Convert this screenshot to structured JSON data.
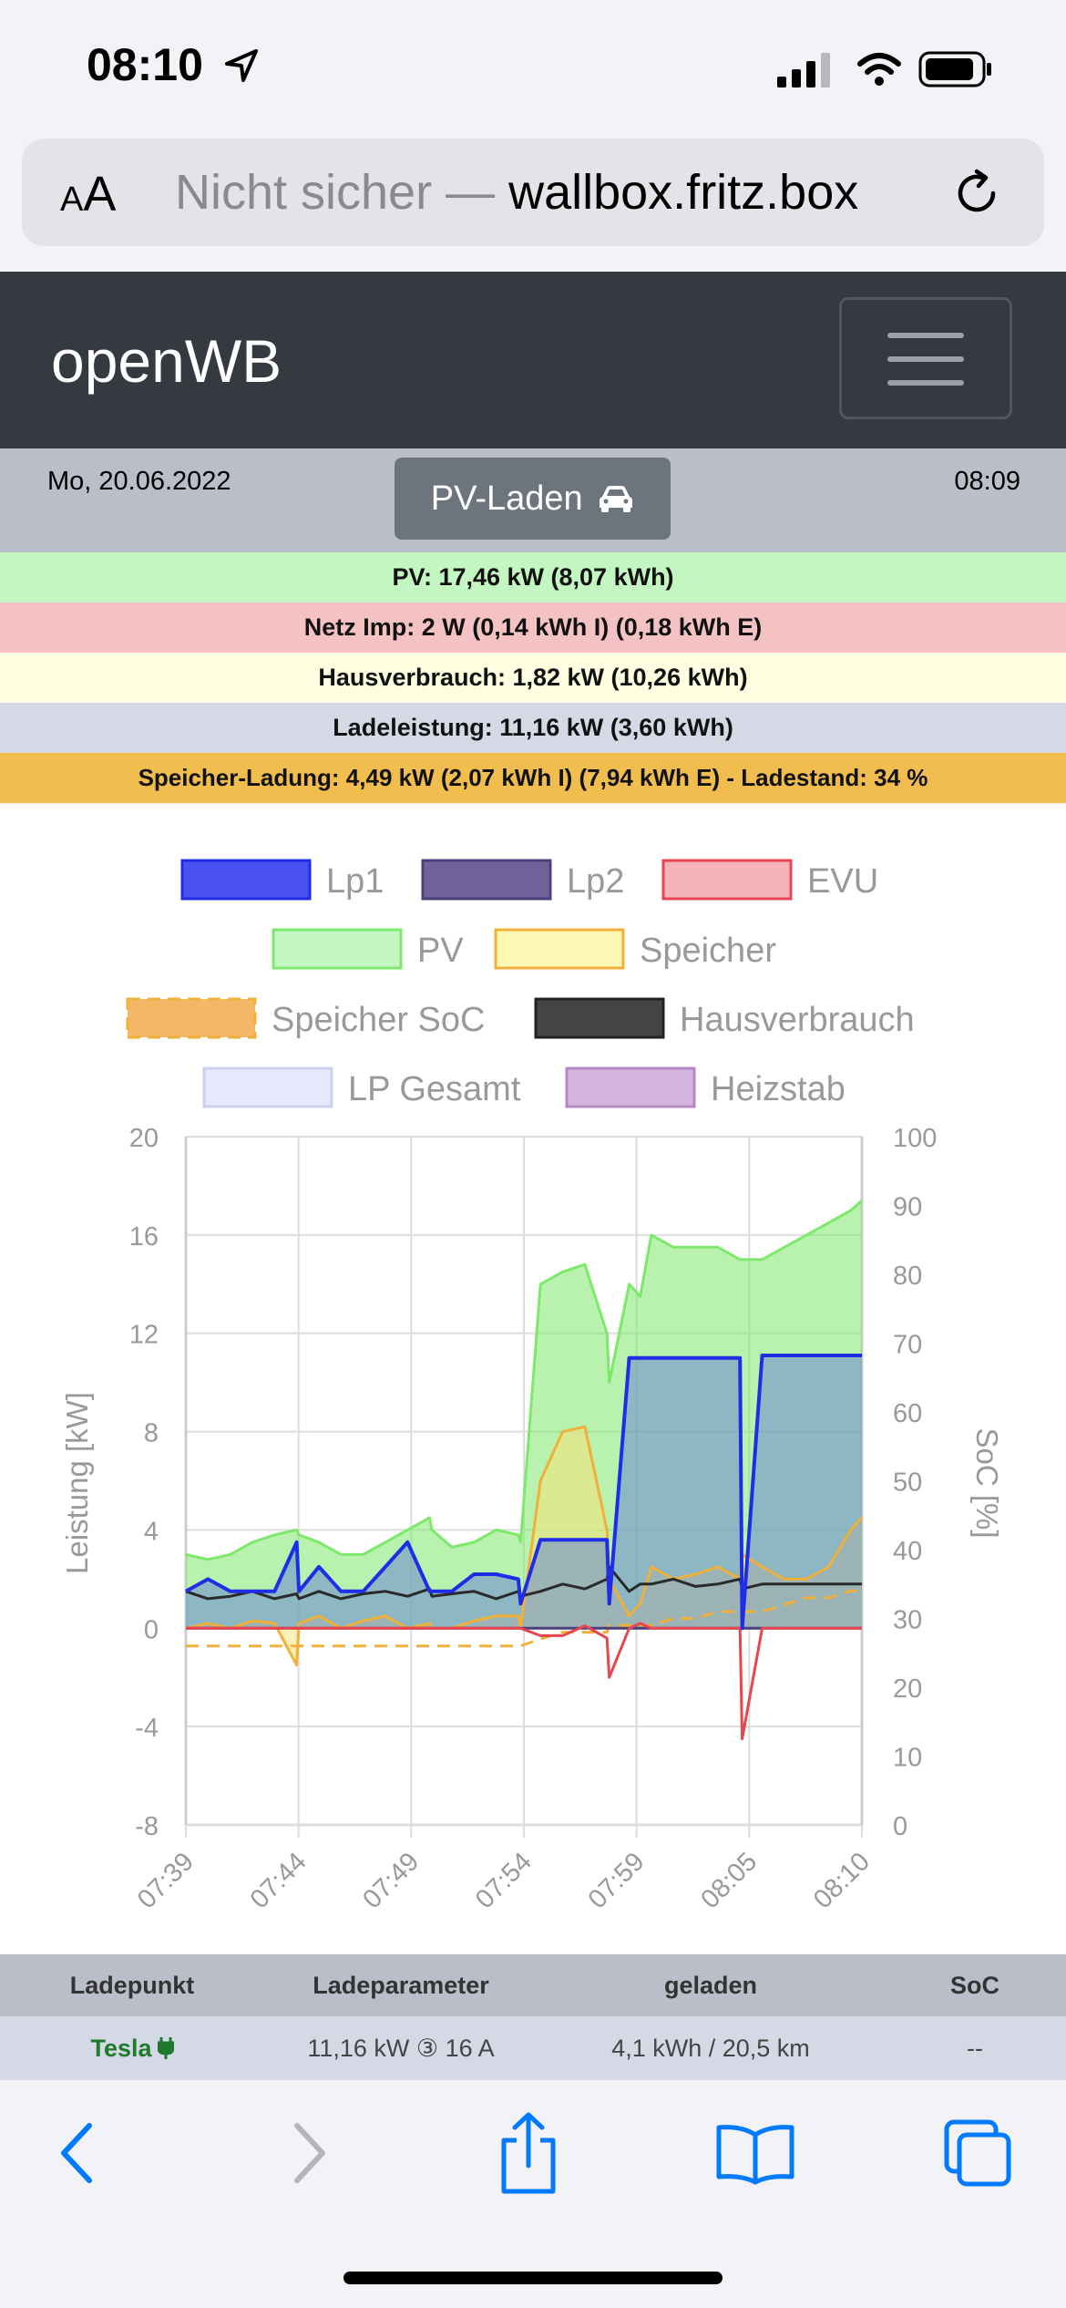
{
  "status_bar": {
    "time": "08:10",
    "icons": [
      "location-arrow-icon",
      "signal-icon",
      "wifi-icon",
      "battery-icon"
    ]
  },
  "browser": {
    "text_size_label": "AA",
    "security": "Nicht sicher — ",
    "host": "wallbox.fritz.box",
    "reload_icon": "reload-icon"
  },
  "navbar": {
    "brand": "openWB",
    "menu_icon": "hamburger-menu-icon"
  },
  "info": {
    "date": "Mo, 20.06.2022",
    "time": "08:09",
    "mode_label": "PV-Laden",
    "mode_icon": "car-icon"
  },
  "stats": {
    "pv": "PV: 17,46 kW (8,07 kWh)",
    "grid": "Netz Imp: 2 W (0,14 kWh I) (0,18 kWh E)",
    "house": "Hausverbrauch: 1,82 kW (10,26 kWh)",
    "charge": "Ladeleistung: 11,16 kW (3,60 kWh)",
    "storage": "Speicher-Ladung: 4,49 kW (2,07 kWh I) (7,94 kWh E) - Ladestand: 34 %"
  },
  "colors": {
    "pv_bg": "#c3f6c0",
    "grid_bg": "#f5c2c4",
    "house_bg": "#fefee0",
    "charge_bg": "#d4d9e5",
    "storage_bg": "#f1bd4e",
    "lp1": "#1f2ee6",
    "lp2": "#4b3f7e",
    "evu": "#e8454f",
    "pv": "#7ee86c",
    "speicher": "#f0b03a",
    "soc": "#f0b03a",
    "haus": "#2a2a2a",
    "heizstab": "#b489c4",
    "accent": "#007aff"
  },
  "chart_data": {
    "type": "line",
    "legend": [
      "Lp1",
      "Lp2",
      "EVU",
      "PV",
      "Speicher",
      "Speicher SoC",
      "Hausverbrauch",
      "LP Gesamt",
      "Heizstab"
    ],
    "ylabel": "Leistung [kW]",
    "y2label": "SoC [%]",
    "ylim": [
      -8,
      20
    ],
    "y2lim": [
      0,
      100
    ],
    "yticks": [
      "20",
      "16",
      "12",
      "8",
      "4",
      "0",
      "-4",
      "-8"
    ],
    "y2ticks": [
      "100",
      "90",
      "80",
      "70",
      "60",
      "50",
      "40",
      "30",
      "20",
      "10",
      "0"
    ],
    "xticks": [
      "07:39",
      "07:44",
      "07:49",
      "07:54",
      "07:59",
      "08:05",
      "08:10"
    ],
    "x": [
      0,
      1,
      2,
      3,
      4,
      5,
      5.1,
      6,
      7,
      8,
      9,
      10,
      11,
      11.1,
      12,
      13,
      14,
      15,
      15.1,
      16,
      17,
      18,
      19,
      19.1,
      20,
      20.5,
      21,
      22,
      23,
      24,
      25,
      25.1,
      26,
      27,
      28,
      29,
      30,
      30.5
    ],
    "series": [
      {
        "name": "PV",
        "values": [
          3,
          2.8,
          3,
          3.5,
          3.8,
          4,
          3.8,
          3.5,
          3,
          3,
          3.5,
          4,
          4.5,
          4,
          3.3,
          3.5,
          4,
          3.8,
          3.5,
          14,
          14.5,
          14.8,
          12,
          10,
          14,
          13.5,
          16,
          15.5,
          15.5,
          15.5,
          15,
          15,
          15,
          15.5,
          16,
          16.5,
          17,
          17.4
        ]
      },
      {
        "name": "Lp1",
        "values": [
          1.5,
          2,
          1.5,
          1.5,
          1.5,
          3.5,
          1.5,
          2.5,
          1.5,
          1.5,
          2.5,
          3.5,
          1.5,
          1.5,
          1.5,
          2.2,
          2.2,
          2,
          1,
          3.6,
          3.6,
          3.6,
          3.6,
          1,
          11,
          11,
          11,
          11,
          11,
          11,
          11,
          0,
          11.1,
          11.1,
          11.1,
          11.1,
          11.1,
          11.1
        ]
      },
      {
        "name": "Lp2",
        "values": [
          0,
          0,
          0,
          0,
          0,
          0,
          0,
          0,
          0,
          0,
          0,
          0,
          0,
          0,
          0,
          0,
          0,
          0,
          0,
          0,
          0,
          0,
          0,
          0,
          0,
          0,
          0,
          0,
          0,
          0,
          0,
          0,
          0,
          0,
          0,
          0,
          0,
          0
        ]
      },
      {
        "name": "EVU",
        "values": [
          0,
          0,
          0,
          0,
          0,
          0,
          0,
          0,
          0,
          0,
          0,
          0,
          0,
          0,
          0,
          0,
          0,
          0,
          0,
          -0.3,
          -0.3,
          0.1,
          -0.4,
          -2,
          0,
          0.2,
          0,
          0,
          0,
          0,
          0,
          -4.5,
          0,
          0,
          0,
          0,
          0,
          0
        ]
      },
      {
        "name": "Speicher",
        "values": [
          0,
          0.2,
          0,
          0.3,
          0.2,
          -1.5,
          0.2,
          0.5,
          0,
          0.3,
          0.5,
          0,
          0.2,
          0,
          0,
          0.3,
          0.5,
          0.5,
          0,
          6,
          8,
          8.2,
          4,
          2,
          0.5,
          1,
          2.5,
          2,
          2.2,
          2.5,
          2,
          3,
          2.5,
          2,
          2,
          2.5,
          4,
          4.5
        ]
      },
      {
        "name": "Speicher SoC",
        "values": [
          26,
          26,
          26,
          26,
          26,
          26,
          26,
          26,
          26,
          26,
          26,
          26,
          26,
          26,
          26,
          26,
          26,
          26,
          26,
          27,
          28,
          28,
          28,
          29,
          29,
          29,
          29,
          30,
          30,
          31,
          31,
          31,
          31,
          32,
          33,
          33,
          34,
          34
        ]
      },
      {
        "name": "Hausverbrauch",
        "values": [
          1.5,
          1.2,
          1.3,
          1.5,
          1.2,
          1.4,
          1.2,
          1.5,
          1.2,
          1.4,
          1.5,
          1.3,
          1.6,
          1.3,
          1.4,
          1.5,
          1.2,
          1.5,
          1.3,
          1.5,
          1.8,
          1.6,
          2,
          2.5,
          1.5,
          1.8,
          1.8,
          2,
          1.7,
          1.8,
          2,
          1.6,
          1.8,
          1.8,
          1.8,
          1.8,
          1.8,
          1.8
        ]
      }
    ]
  },
  "table": {
    "headers": [
      "Ladepunkt",
      "Ladeparameter",
      "geladen",
      "SoC"
    ],
    "rows": [
      {
        "ladepunkt": "Tesla",
        "ladepunkt_icon": "plug-icon",
        "parameter": "11,16 kW ③ 16 A",
        "geladen": "4,1 kWh / 20,5 km",
        "soc": "--"
      }
    ]
  },
  "toolbar": {
    "icons": [
      "back-icon",
      "forward-icon",
      "share-icon",
      "bookmarks-icon",
      "tabs-icon"
    ]
  }
}
